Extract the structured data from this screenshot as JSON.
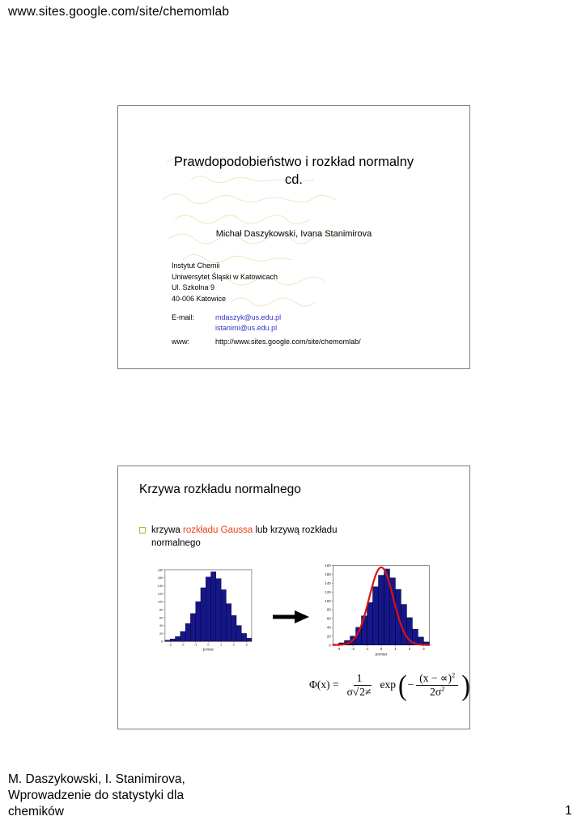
{
  "colors": {
    "link_blue": "#3333cc",
    "highlight_red": "#e8411b",
    "bullet_olive": "#b9b920",
    "bar_navy": "#16168c",
    "curve_red": "#dd1111"
  },
  "page": {
    "header_url": "www.sites.google.com/site/chemomlab",
    "footer": {
      "lines": [
        "M. Daszykowski, I. Stanimirova,",
        "Wprowadzenie do statystyki dla",
        "chemików"
      ],
      "page_number": "1"
    }
  },
  "slide1": {
    "title_line1": "Prawdopodobieństwo i rozkład normalny",
    "title_line2": "cd.",
    "authors": "Michał Daszykowski, Ivana Stanimirova",
    "address": [
      "Instytut Chemii",
      "Uniwersytet Śląski w Katowicach",
      "Ul. Szkolna 9",
      "40-006 Katowice"
    ],
    "email_label": "E-mail:",
    "emails": [
      "mdaszyk@us.edu.pl",
      "istanimi@us.edu.pl"
    ],
    "www_label": "www:",
    "www_value": "http://www.sites.google.com/site/chemomlab/"
  },
  "slide2": {
    "title": "Krzywa rozkładu normalnego",
    "bullet": {
      "pre": "krzywa ",
      "highlight": "rozkładu Gaussa",
      "post": " lub krzywą rozkładu normalnego"
    },
    "formula": {
      "lhs": "Φ(x) =",
      "frac1_num": "1",
      "frac1_den_pre": "σ√",
      "frac1_radicand": "2≠",
      "exp_label": "exp",
      "lparen": "(",
      "rparen": ")",
      "minus": "−",
      "frac2_num_base": "(x − ∝)",
      "frac2_num_exp": "2",
      "frac2_den_base": "2σ",
      "frac2_den_exp": "2"
    }
  },
  "chart_data": [
    {
      "type": "bar",
      "title": "",
      "xlabel": "pomiar",
      "ylabel": "",
      "xlim": [
        -3.4,
        3.4
      ],
      "ylim": [
        0,
        180
      ],
      "xticks": [
        -3,
        -2,
        -1,
        0,
        1,
        2,
        3
      ],
      "yticks": [
        0,
        20,
        40,
        60,
        80,
        100,
        120,
        140,
        160,
        180
      ],
      "bin_width": 0.4,
      "values": [
        3,
        6,
        12,
        25,
        45,
        70,
        100,
        135,
        162,
        175,
        158,
        130,
        95,
        65,
        40,
        20,
        8
      ],
      "bar_color": "#16168c"
    },
    {
      "type": "bar",
      "title": "",
      "xlabel": "pomiar",
      "ylabel": "",
      "xlim": [
        -3.4,
        3.4
      ],
      "ylim": [
        0,
        180
      ],
      "xticks": [
        -3,
        -2,
        -1,
        0,
        1,
        2,
        3
      ],
      "yticks": [
        0,
        20,
        40,
        60,
        80,
        100,
        120,
        140,
        160,
        180
      ],
      "bin_width": 0.4,
      "values": [
        2,
        5,
        10,
        20,
        40,
        66,
        96,
        132,
        158,
        172,
        152,
        126,
        92,
        62,
        36,
        18,
        7
      ],
      "bar_color": "#16168c",
      "curve": {
        "type": "gauss",
        "amplitude": 176,
        "mean": 0,
        "sigma": 0.85,
        "color": "#dd1111"
      }
    }
  ]
}
